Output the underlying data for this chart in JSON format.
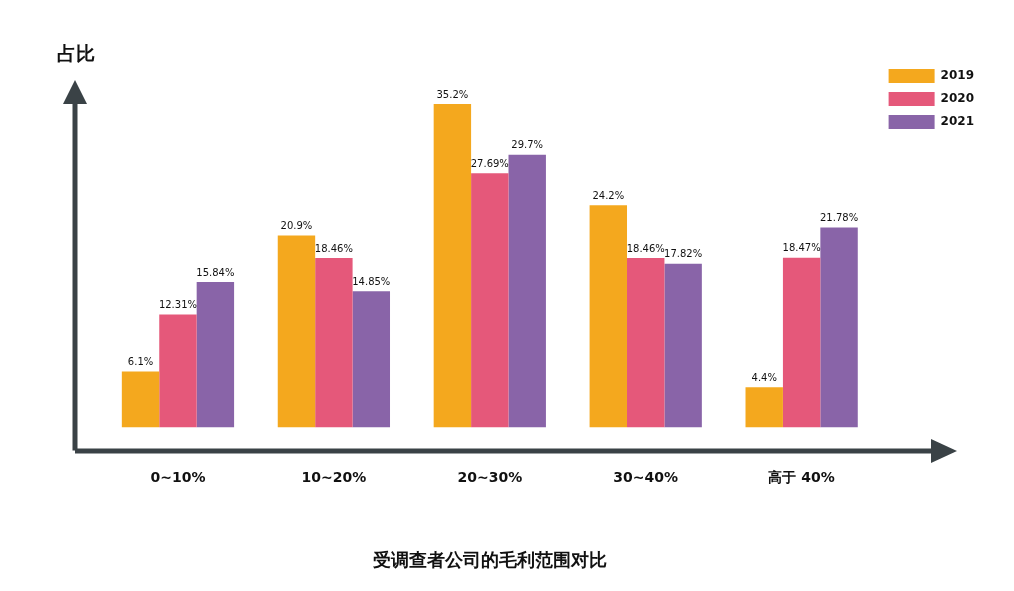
{
  "chart_data": {
    "type": "bar",
    "xlabel": "受调查者公司的毛利范围对比",
    "ylabel": "占比",
    "categories": [
      "0~10%",
      "10~20%",
      "20~30%",
      "30~40%",
      "高于 40%"
    ],
    "series": [
      {
        "name": "2019",
        "color": "#f4a81e",
        "values": [
          6.1,
          20.9,
          35.2,
          24.2,
          4.4
        ],
        "value_labels": [
          "6.1%",
          "20.9%",
          "35.2%",
          "24.2%",
          "4.4%"
        ]
      },
      {
        "name": "2020",
        "color": "#e5587a",
        "values": [
          12.31,
          18.46,
          27.69,
          18.46,
          18.47
        ],
        "value_labels": [
          "12.31%",
          "18.46%",
          "27.69%",
          "18.46%",
          "18.47%"
        ]
      },
      {
        "name": "2021",
        "color": "#8964a8",
        "values": [
          15.84,
          14.85,
          29.7,
          17.82,
          21.78
        ],
        "value_labels": [
          "15.84%",
          "14.85%",
          "29.7%",
          "17.82%",
          "21.78%"
        ]
      }
    ],
    "grid": false,
    "legend": "top right"
  }
}
